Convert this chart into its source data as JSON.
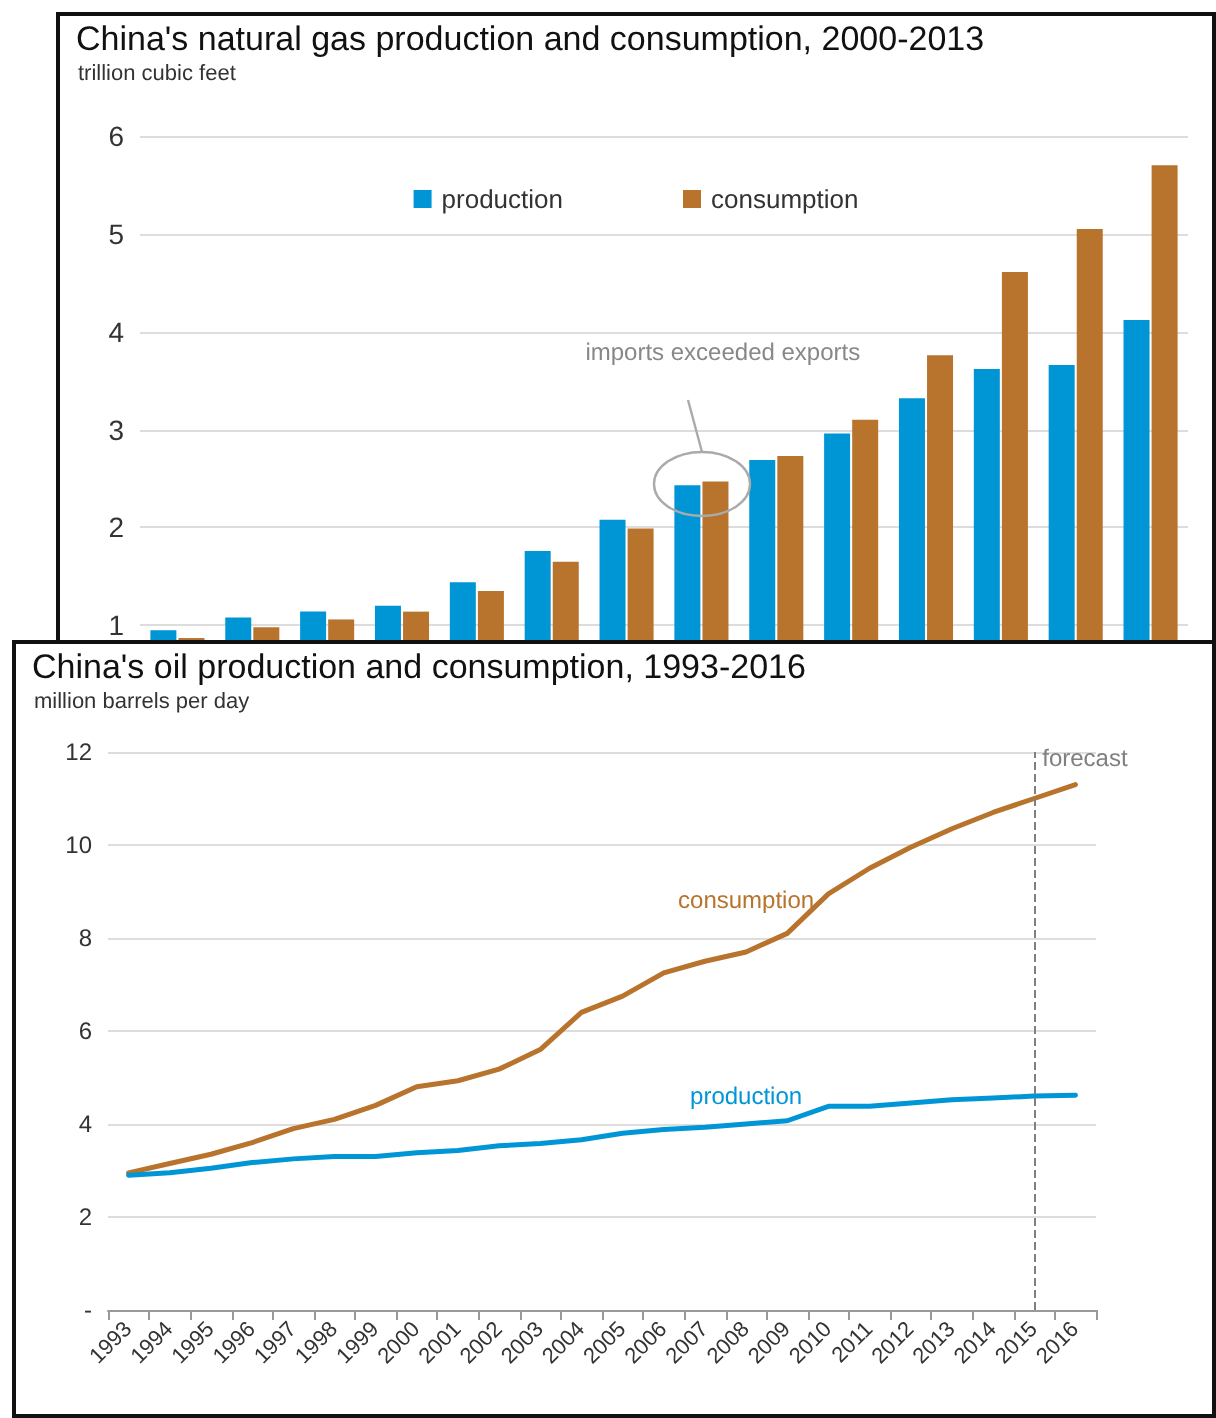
{
  "chart_data": [
    {
      "type": "bar",
      "title": "China's natural gas production and consumption, 2000-2013",
      "subtitle": "trillion cubic feet",
      "categories": [
        null,
        null,
        null,
        null,
        null,
        null,
        null,
        null,
        null,
        null,
        null,
        null,
        null,
        null
      ],
      "series": [
        {
          "name": "production",
          "color": "#0096d6",
          "values": [
            0.95,
            1.08,
            1.14,
            1.2,
            1.44,
            1.76,
            2.08,
            2.43,
            2.69,
            2.96,
            3.32,
            3.62,
            3.66,
            4.12
          ]
        },
        {
          "name": "consumption",
          "color": "#b8732c",
          "values": [
            0.87,
            0.98,
            1.06,
            1.14,
            1.35,
            1.65,
            1.99,
            2.47,
            2.73,
            3.1,
            3.76,
            4.61,
            5.05,
            5.7
          ]
        }
      ],
      "ylim": [
        0.85,
        6
      ],
      "yticks": [
        1,
        2,
        3,
        4,
        5,
        6
      ],
      "grid": "y",
      "legend": "top",
      "tick_labels": "y",
      "annotations": [
        "imports exceeded exports"
      ]
    },
    {
      "type": "line",
      "title": "China's oil production and consumption, 1993-2016",
      "subtitle": "million barrels per day",
      "categories": [
        "1993",
        "1994",
        "1995",
        "1996",
        "1997",
        "1998",
        "1999",
        "2000",
        "2001",
        "2002",
        "2003",
        "2004",
        "2005",
        "2006",
        "2007",
        "2008",
        "2009",
        "2010",
        "2011",
        "2012",
        "2013",
        "2014",
        "2015",
        "2016"
      ],
      "series": [
        {
          "name": "consumption",
          "color": "#b8732c",
          "values": [
            2.95,
            3.15,
            3.35,
            3.6,
            3.9,
            4.1,
            4.4,
            4.8,
            4.93,
            5.18,
            5.6,
            6.4,
            6.75,
            7.25,
            7.5,
            7.7,
            8.1,
            8.95,
            9.5,
            9.95,
            10.35,
            10.7,
            11.0,
            11.3
          ]
        },
        {
          "name": "production",
          "color": "#0096d6",
          "values": [
            2.9,
            2.95,
            3.05,
            3.17,
            3.25,
            3.3,
            3.3,
            3.38,
            3.43,
            3.53,
            3.58,
            3.66,
            3.8,
            3.88,
            3.93,
            4.0,
            4.07,
            4.38,
            4.38,
            4.45,
            4.52,
            4.56,
            4.6,
            4.62
          ]
        }
      ],
      "ylim": [
        0,
        12
      ],
      "yticks": [
        {
          "value": 0,
          "label": "-"
        },
        2,
        4,
        6,
        8,
        10,
        12
      ],
      "grid": "y",
      "marker": "none",
      "line_style": "solid",
      "ref_lines": [
        {
          "axis": "x",
          "value": "2015",
          "label": "forecast",
          "color": "#808080",
          "line_style": "dashed"
        }
      ]
    }
  ]
}
